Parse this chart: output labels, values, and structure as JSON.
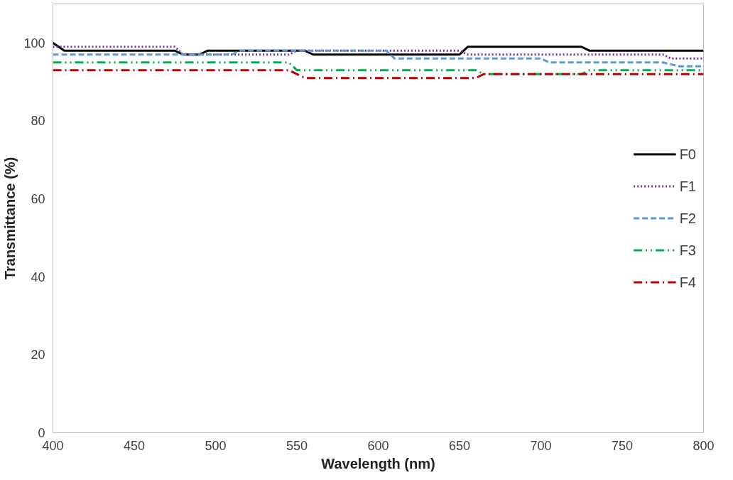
{
  "chart_data": {
    "type": "line",
    "xlabel": "Wavelength (nm)",
    "ylabel": "Transmittance (%)",
    "xlim": [
      400,
      800
    ],
    "xticks": [
      400,
      450,
      500,
      550,
      600,
      650,
      700,
      750,
      800
    ],
    "ylim": [
      0,
      110
    ],
    "yticks": [
      0,
      20,
      40,
      60,
      80,
      100
    ],
    "grid": false,
    "legend": "right",
    "marker": "none",
    "series": [
      {
        "name": "F0",
        "color": "#000000",
        "line_style": "solid",
        "x": [
          400,
          407,
          475,
          480,
          490,
          495,
          555,
          560,
          650,
          655,
          725,
          730,
          800
        ],
        "values": [
          100,
          98,
          98,
          97,
          97,
          98,
          98,
          97,
          97,
          99,
          99,
          98,
          98
        ]
      },
      {
        "name": "F1",
        "color": "#7030a0",
        "line_style": "dotted",
        "x": [
          400,
          475,
          480,
          545,
          550,
          650,
          655,
          775,
          780,
          800
        ],
        "values": [
          99,
          99,
          97,
          97,
          98,
          98,
          97,
          97,
          96,
          96
        ]
      },
      {
        "name": "F2",
        "color": "#5b9bd5",
        "line_style": "dashed",
        "x": [
          400,
          510,
          515,
          605,
          610,
          700,
          705,
          775,
          785,
          800
        ],
        "values": [
          97,
          97,
          98,
          98,
          96,
          96,
          95,
          95,
          94,
          94
        ]
      },
      {
        "name": "F3",
        "color": "#00b050",
        "line_style": "dashdotdot",
        "x": [
          400,
          545,
          550,
          660,
          665,
          725,
          730,
          800
        ],
        "values": [
          95,
          95,
          93,
          93,
          92,
          92,
          93,
          93
        ]
      },
      {
        "name": "F4",
        "color": "#c00000",
        "line_style": "dashdot",
        "x": [
          400,
          545,
          555,
          660,
          665,
          800
        ],
        "values": [
          93,
          93,
          91,
          91,
          92,
          92
        ]
      }
    ]
  }
}
